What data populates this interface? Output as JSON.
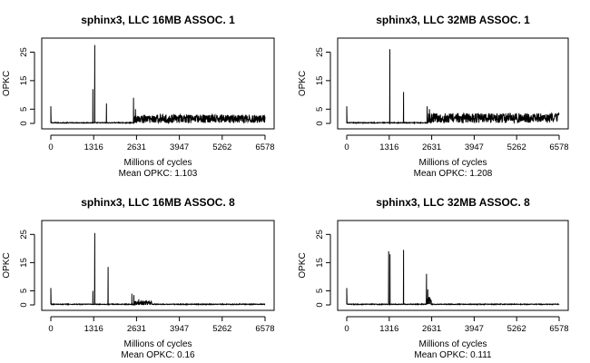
{
  "chart_data": [
    {
      "type": "line",
      "title": "sphinx3, LLC 16MB ASSOC. 1",
      "xlabel": "Millions of cycles",
      "subtitle": "Mean OPKC: 1.103",
      "ylabel": "OPKC",
      "xticks": [
        0,
        1316,
        2631,
        3947,
        5262,
        6578
      ],
      "yticks": [
        0,
        5,
        15,
        25
      ],
      "xlim": [
        0,
        6578
      ],
      "ylim": [
        0,
        28
      ],
      "spikes": [
        [
          0,
          6
        ],
        [
          1290,
          12
        ],
        [
          1350,
          27.5
        ],
        [
          1710,
          7
        ],
        [
          2540,
          9
        ],
        [
          2600,
          5
        ]
      ],
      "noise": {
        "from": 2560,
        "to": 6578,
        "base": 1.6,
        "amp": 1.5
      },
      "series": [
        {
          "x": [
            0,
            1316,
            2631,
            3947,
            5262,
            6578
          ],
          "y": [
            0.2,
            0.3,
            2.0,
            1.7,
            1.5,
            2.0
          ]
        }
      ]
    },
    {
      "type": "line",
      "title": "sphinx3, LLC 32MB ASSOC. 1",
      "xlabel": "Millions of cycles",
      "subtitle": "Mean OPKC: 1.208",
      "ylabel": "OPKC",
      "xticks": [
        0,
        1316,
        2631,
        3947,
        5262,
        6578
      ],
      "yticks": [
        0,
        5,
        15,
        25
      ],
      "xlim": [
        0,
        6578
      ],
      "ylim": [
        0,
        28
      ],
      "spikes": [
        [
          0,
          6
        ],
        [
          1335,
          26
        ],
        [
          1760,
          11
        ],
        [
          2490,
          6
        ],
        [
          2560,
          5
        ]
      ],
      "noise": {
        "from": 2520,
        "to": 6578,
        "base": 1.9,
        "amp": 1.7
      },
      "series": [
        {
          "x": [
            0,
            1316,
            2631,
            3947,
            5262,
            6578
          ],
          "y": [
            0.2,
            0.3,
            2.3,
            2.0,
            1.8,
            2.4
          ]
        }
      ]
    },
    {
      "type": "line",
      "title": "sphinx3, LLC 16MB ASSOC. 8",
      "xlabel": "Millions of cycles",
      "subtitle": "Mean OPKC: 0.16",
      "ylabel": "OPKC",
      "xticks": [
        0,
        1316,
        2631,
        3947,
        5262,
        6578
      ],
      "yticks": [
        0,
        5,
        15,
        25
      ],
      "xlim": [
        0,
        6578
      ],
      "ylim": [
        0,
        28
      ],
      "spikes": [
        [
          0,
          6
        ],
        [
          1290,
          5
        ],
        [
          1350,
          25.5
        ],
        [
          1760,
          13.5
        ],
        [
          2490,
          4
        ],
        [
          2550,
          3.5
        ],
        [
          2700,
          2
        ],
        [
          2800,
          1.2
        ],
        [
          3200,
          0.6
        ],
        [
          4200,
          0.4
        ]
      ],
      "noise": {
        "from": 2560,
        "to": 3100,
        "base": 0.6,
        "amp": 0.8
      },
      "series": [
        {
          "x": [
            0,
            1316,
            2631,
            3947,
            5262,
            6578
          ],
          "y": [
            0.1,
            0.2,
            0.5,
            0.1,
            0.1,
            0.1
          ]
        }
      ]
    },
    {
      "type": "line",
      "title": "sphinx3, LLC 32MB ASSOC. 8",
      "xlabel": "Millions of cycles",
      "subtitle": "Mean OPKC: 0.111",
      "ylabel": "OPKC",
      "xticks": [
        0,
        1316,
        2631,
        3947,
        5262,
        6578
      ],
      "yticks": [
        0,
        5,
        15,
        25
      ],
      "xlim": [
        0,
        6578
      ],
      "ylim": [
        0,
        28
      ],
      "spikes": [
        [
          0,
          6
        ],
        [
          1300,
          19
        ],
        [
          1340,
          18
        ],
        [
          1760,
          19.5
        ],
        [
          2470,
          11
        ],
        [
          2510,
          5.5
        ],
        [
          2560,
          2
        ]
      ],
      "noise": {
        "from": 2480,
        "to": 2620,
        "base": 1.5,
        "amp": 1.5
      },
      "series": [
        {
          "x": [
            0,
            1316,
            2631,
            3947,
            5262,
            6578
          ],
          "y": [
            0.1,
            0.2,
            0.3,
            0.05,
            0.05,
            0.05
          ]
        }
      ]
    }
  ]
}
